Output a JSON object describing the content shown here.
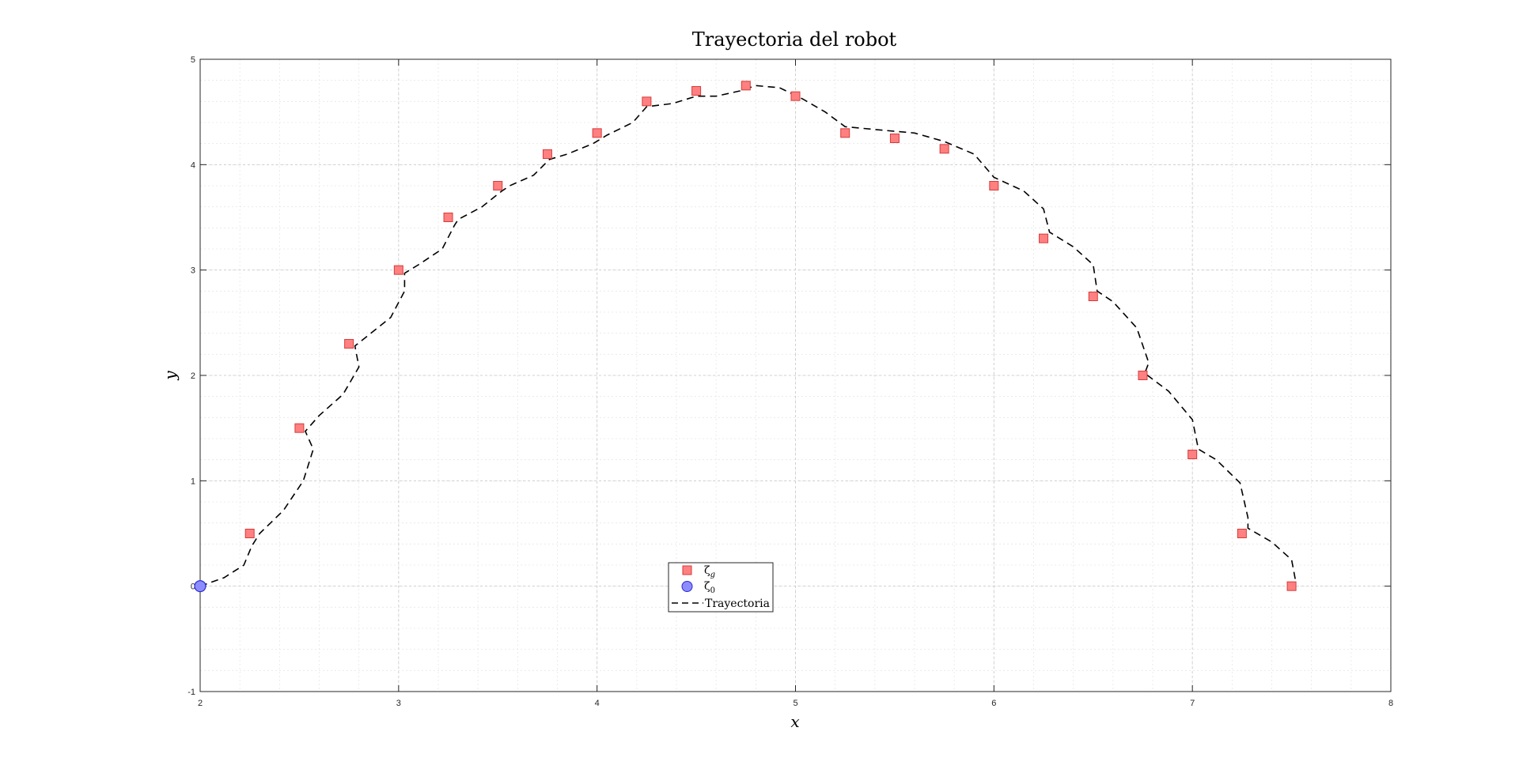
{
  "chart_data": {
    "type": "line",
    "title": "Trayectoria del robot",
    "xlabel": "x",
    "ylabel": "y",
    "xlim": [
      2,
      8
    ],
    "ylim": [
      -1,
      5
    ],
    "xticks": [
      "2",
      "3",
      "4",
      "5",
      "6",
      "7",
      "8"
    ],
    "yticks": [
      "-1",
      "0",
      "1",
      "2",
      "3",
      "4",
      "5"
    ],
    "grid": true,
    "minor_grid": true,
    "legend_placement": "bottom-center",
    "series": [
      {
        "name": "ζ_g",
        "kind": "scatter",
        "marker": "square",
        "color": "#ff8080",
        "edge": "#d83a3a",
        "points": [
          [
            2.25,
            0.5
          ],
          [
            2.5,
            1.5
          ],
          [
            2.75,
            2.3
          ],
          [
            3.0,
            3.0
          ],
          [
            3.25,
            3.5
          ],
          [
            3.5,
            3.8
          ],
          [
            3.75,
            4.1
          ],
          [
            4.0,
            4.3
          ],
          [
            4.25,
            4.6
          ],
          [
            4.5,
            4.7
          ],
          [
            4.75,
            4.75
          ],
          [
            5.0,
            4.65
          ],
          [
            5.25,
            4.3
          ],
          [
            5.5,
            4.25
          ],
          [
            5.75,
            4.15
          ],
          [
            6.0,
            3.8
          ],
          [
            6.25,
            3.3
          ],
          [
            6.5,
            2.75
          ],
          [
            6.75,
            2.0
          ],
          [
            7.0,
            1.25
          ],
          [
            7.25,
            0.5
          ],
          [
            7.5,
            0.0
          ]
        ]
      },
      {
        "name": "ζ_0",
        "kind": "scatter",
        "marker": "circle",
        "color": "#8c8cff",
        "edge": "#2a2ad0",
        "points": [
          [
            2.0,
            0.0
          ]
        ]
      },
      {
        "name": "Trayectoria",
        "kind": "line",
        "style": "dashed",
        "color": "#000000",
        "points": [
          [
            2.0,
            0.0
          ],
          [
            2.12,
            0.08
          ],
          [
            2.22,
            0.2
          ],
          [
            2.26,
            0.38
          ],
          [
            2.3,
            0.5
          ],
          [
            2.42,
            0.72
          ],
          [
            2.52,
            1.0
          ],
          [
            2.57,
            1.3
          ],
          [
            2.53,
            1.47
          ],
          [
            2.6,
            1.62
          ],
          [
            2.72,
            1.82
          ],
          [
            2.8,
            2.08
          ],
          [
            2.78,
            2.28
          ],
          [
            2.84,
            2.37
          ],
          [
            2.96,
            2.55
          ],
          [
            3.03,
            2.8
          ],
          [
            3.03,
            2.97
          ],
          [
            3.1,
            3.05
          ],
          [
            3.22,
            3.2
          ],
          [
            3.28,
            3.42
          ],
          [
            3.3,
            3.48
          ],
          [
            3.42,
            3.6
          ],
          [
            3.52,
            3.75
          ],
          [
            3.56,
            3.8
          ],
          [
            3.68,
            3.9
          ],
          [
            3.76,
            4.05
          ],
          [
            3.85,
            4.1
          ],
          [
            3.98,
            4.2
          ],
          [
            4.05,
            4.28
          ],
          [
            4.18,
            4.4
          ],
          [
            4.25,
            4.55
          ],
          [
            4.38,
            4.58
          ],
          [
            4.5,
            4.65
          ],
          [
            4.6,
            4.65
          ],
          [
            4.72,
            4.7
          ],
          [
            4.8,
            4.75
          ],
          [
            4.92,
            4.73
          ],
          [
            5.04,
            4.62
          ],
          [
            5.15,
            4.5
          ],
          [
            5.25,
            4.36
          ],
          [
            5.42,
            4.33
          ],
          [
            5.6,
            4.3
          ],
          [
            5.75,
            4.22
          ],
          [
            5.9,
            4.1
          ],
          [
            6.0,
            3.88
          ],
          [
            6.15,
            3.75
          ],
          [
            6.25,
            3.58
          ],
          [
            6.28,
            3.36
          ],
          [
            6.4,
            3.22
          ],
          [
            6.5,
            3.05
          ],
          [
            6.52,
            2.8
          ],
          [
            6.6,
            2.7
          ],
          [
            6.72,
            2.45
          ],
          [
            6.78,
            2.12
          ],
          [
            6.76,
            2.02
          ],
          [
            6.88,
            1.85
          ],
          [
            7.0,
            1.58
          ],
          [
            7.03,
            1.3
          ],
          [
            7.12,
            1.2
          ],
          [
            7.24,
            0.98
          ],
          [
            7.28,
            0.65
          ],
          [
            7.28,
            0.55
          ],
          [
            7.4,
            0.42
          ],
          [
            7.5,
            0.25
          ],
          [
            7.52,
            0.05
          ]
        ]
      }
    ]
  }
}
